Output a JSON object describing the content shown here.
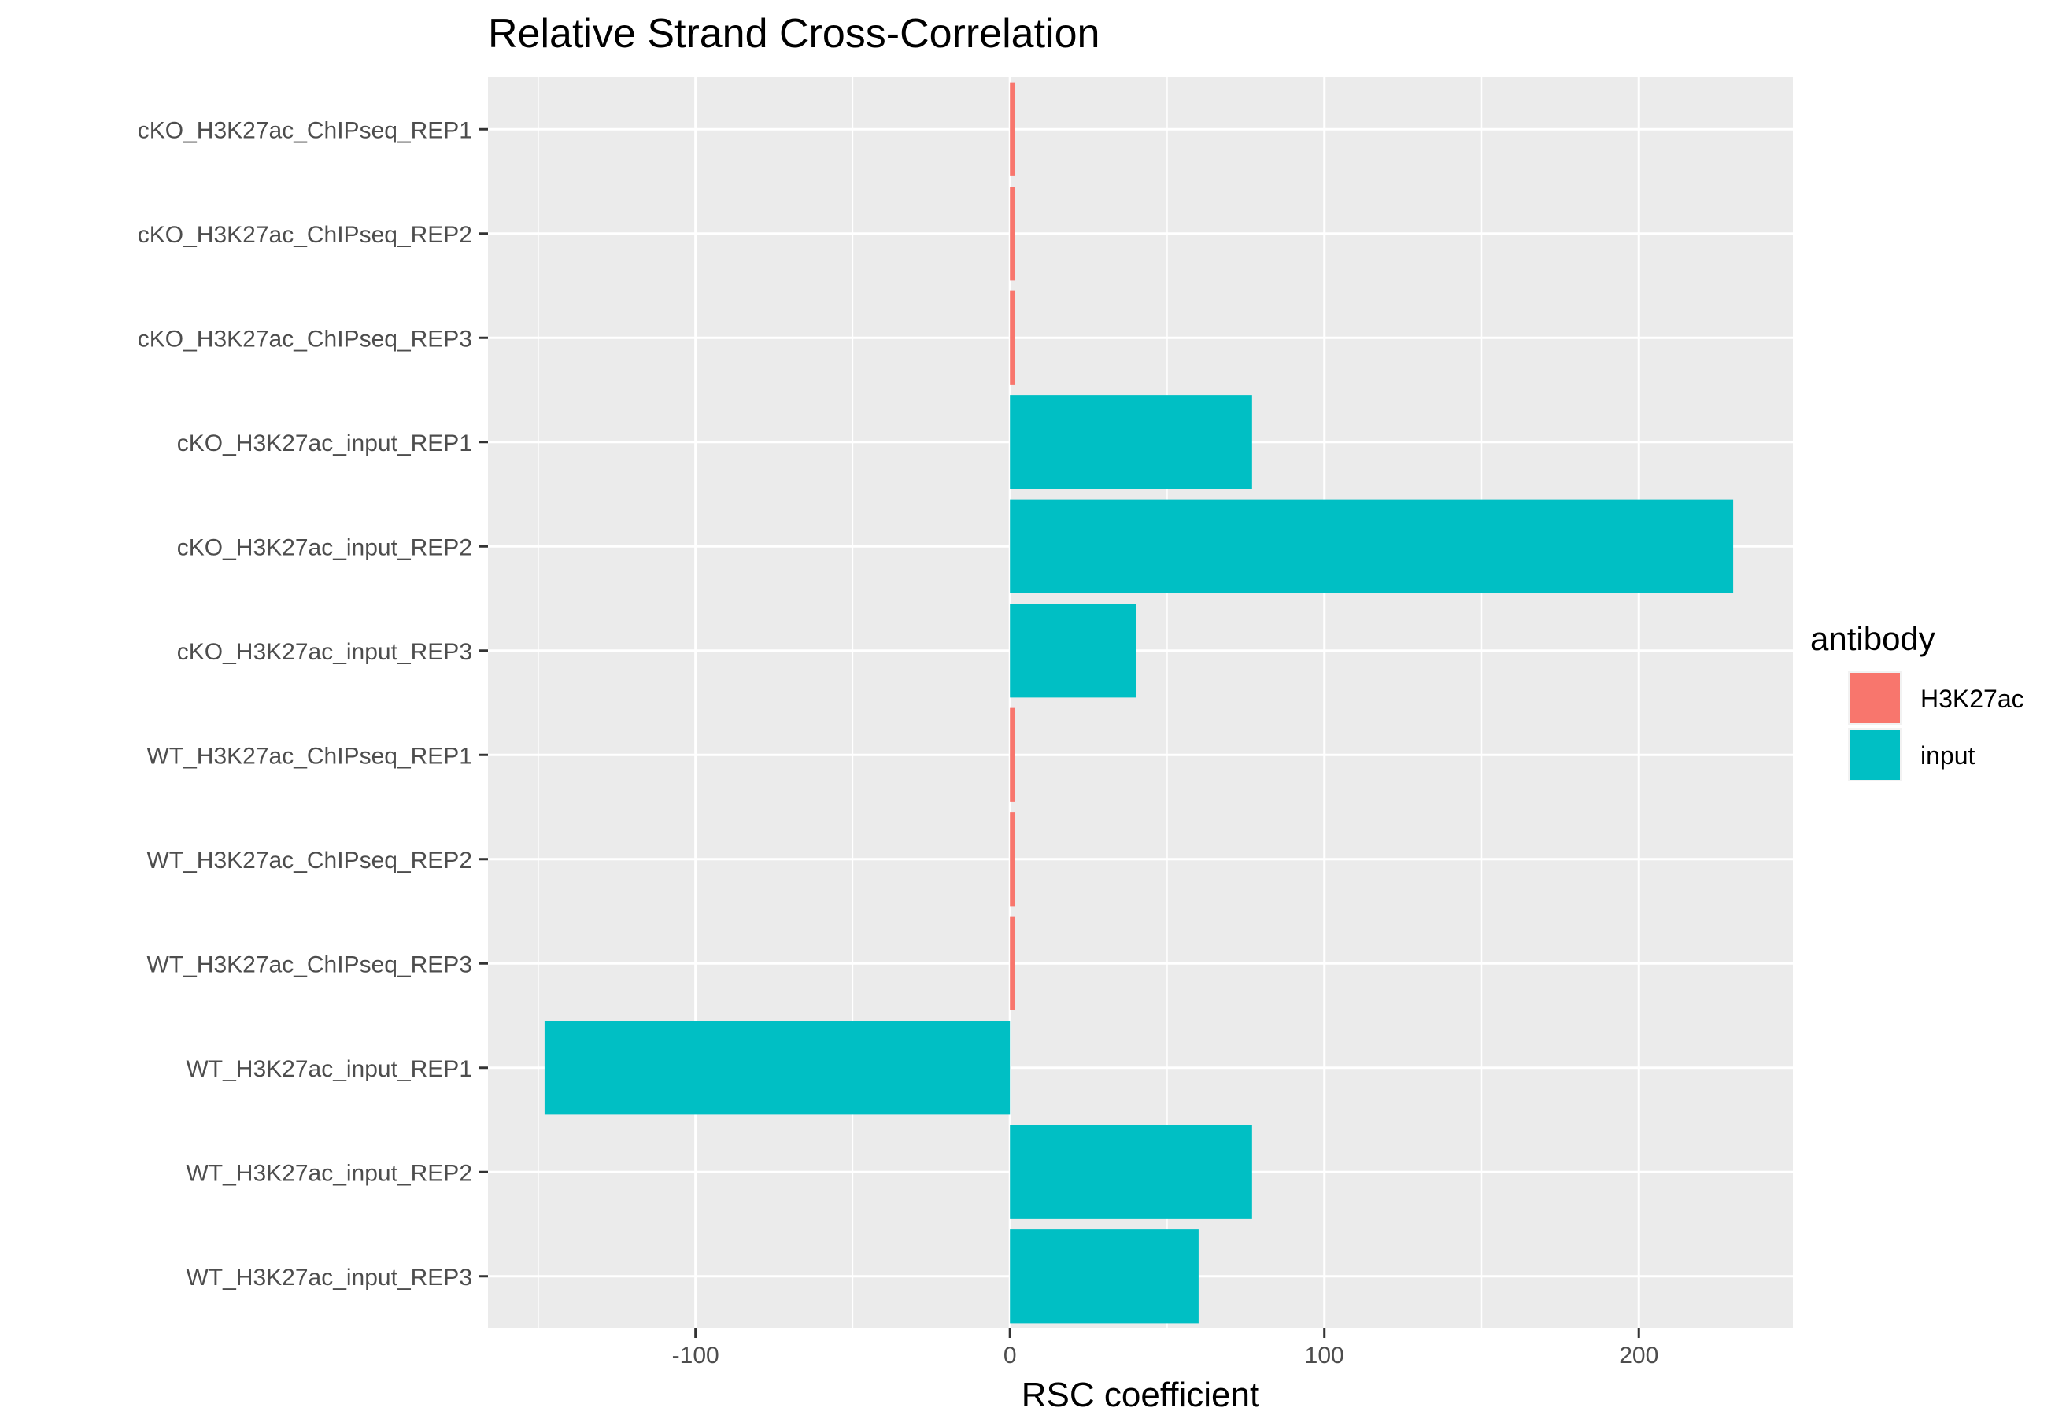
{
  "chart_data": {
    "type": "bar",
    "orientation": "horizontal",
    "title": "Relative Strand Cross-Correlation",
    "xlabel": "RSC coefficient",
    "ylabel": "",
    "xlim": [
      -166,
      249
    ],
    "xticks": [
      -100,
      0,
      100,
      200
    ],
    "xtick_labels": [
      "-100",
      "0",
      "100",
      "200"
    ],
    "grid": true,
    "legend": {
      "title": "antibody",
      "position": "right",
      "entries": [
        {
          "label": "H3K27ac",
          "color": "#F8766D"
        },
        {
          "label": "input",
          "color": "#00BFC4"
        }
      ]
    },
    "categories": [
      "cKO_H3K27ac_ChIPseq_REP1",
      "cKO_H3K27ac_ChIPseq_REP2",
      "cKO_H3K27ac_ChIPseq_REP3",
      "cKO_H3K27ac_input_REP1",
      "cKO_H3K27ac_input_REP2",
      "cKO_H3K27ac_input_REP3",
      "WT_H3K27ac_ChIPseq_REP1",
      "WT_H3K27ac_ChIPseq_REP2",
      "WT_H3K27ac_ChIPseq_REP3",
      "WT_H3K27ac_input_REP1",
      "WT_H3K27ac_input_REP2",
      "WT_H3K27ac_input_REP3"
    ],
    "values": [
      1.5,
      1.5,
      1.5,
      77,
      230,
      40,
      1.5,
      1.5,
      1.5,
      -148,
      77,
      60
    ],
    "groups": [
      "H3K27ac",
      "H3K27ac",
      "H3K27ac",
      "input",
      "input",
      "input",
      "H3K27ac",
      "H3K27ac",
      "H3K27ac",
      "input",
      "input",
      "input"
    ]
  },
  "colors": {
    "panel_background": "#EBEBEB",
    "grid_line": "#FFFFFF",
    "tick_mark": "#333333"
  }
}
